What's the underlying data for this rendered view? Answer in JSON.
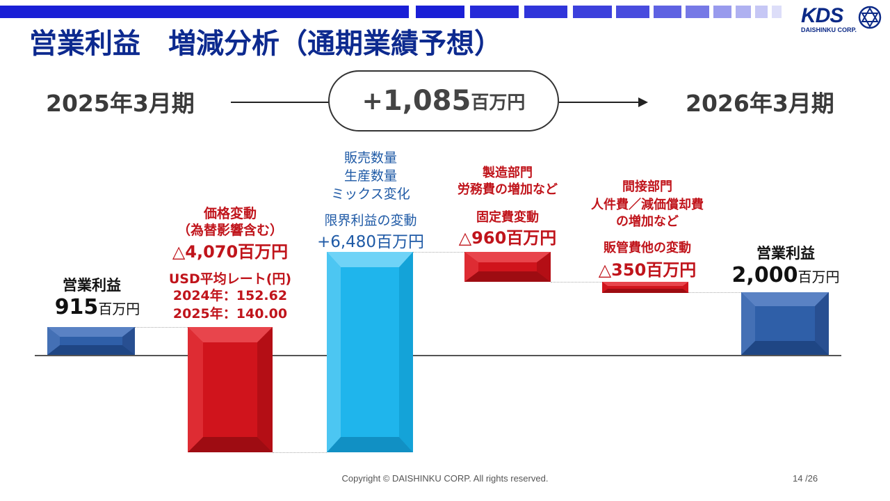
{
  "slide": {
    "title": "営業利益　増減分析（通期業績予想）",
    "logo_text": "KDS",
    "logo_sub": "DAISHINKU CORP.",
    "period_start": "2025年3月期",
    "period_end": "2026年3月期",
    "total_change": {
      "sign": "+",
      "value": "1,085",
      "unit": "百万円"
    },
    "footer": "Copyright © DAISHINKU CORP. All rights reserved.",
    "page_number": "14 /26"
  },
  "bars": {
    "start": {
      "caption": "営業利益",
      "value": "915",
      "unit": "百万円"
    },
    "price": {
      "line1": "価格変動",
      "line2": "（為替影響含む）",
      "value": "△4,070百万円",
      "rate_title": "USD平均レート(円)",
      "rate_2024": "2024年：152.62",
      "rate_2025": "2025年：140.00"
    },
    "margin": {
      "note1": "販売数量",
      "note2": "生産数量",
      "note3": "ミックス変化",
      "caption": "限界利益の変動",
      "value": "+6,480百万円"
    },
    "fixed": {
      "note1": "製造部門",
      "note2": "労務費の増加など",
      "caption": "固定費変動",
      "value": "△960百万円"
    },
    "sga": {
      "note1": "間接部門",
      "note2": "人件費／減価償却費",
      "note3": "の増加など",
      "caption": "販管費他の変動",
      "value": "△350百万円"
    },
    "end": {
      "caption": "営業利益",
      "value": "2,000",
      "unit": "百万円"
    }
  },
  "colors": {
    "title": "#0d2a8f",
    "accent_bar": "#1a1fd6",
    "profit_bar": "#2f5fa8",
    "decrease_bar": "#d0141c",
    "increase_bar": "#1fb5ec",
    "text_red": "#c0141b",
    "text_blue": "#1f5aa6"
  },
  "chart_data": {
    "type": "bar",
    "categories": [
      "2025年3月期 営業利益",
      "価格変動",
      "限界利益の変動",
      "固定費変動",
      "販管費他の変動",
      "2026年3月期 営業利益"
    ],
    "values": [
      915,
      -4070,
      6480,
      -960,
      -350,
      2000
    ],
    "ylabel": "百万円"
  }
}
